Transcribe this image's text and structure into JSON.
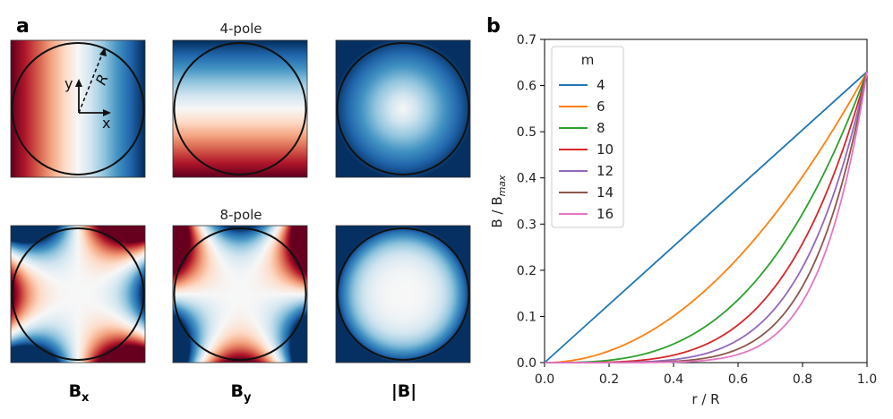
{
  "panel_a": {
    "letter": "a",
    "rows": [
      {
        "title": "4-pole",
        "m": 4
      },
      {
        "title": "8-pole",
        "m": 8
      }
    ],
    "columns": [
      {
        "label_main": "B",
        "label_sub": "x"
      },
      {
        "label_main": "B",
        "label_sub": "y"
      },
      {
        "label_main": "|B|",
        "label_sub": ""
      }
    ],
    "inset": {
      "x_label": "x",
      "y_label": "y",
      "r_label": "R"
    },
    "colormap": "RdBu",
    "colors": {
      "red": "#67001f",
      "white": "#f7f7f7",
      "blue": "#053061"
    }
  },
  "panel_b": {
    "letter": "b",
    "legend_title": "m"
  },
  "chart_data": {
    "type": "line",
    "xlabel": "r / R",
    "ylabel_main": "B / B",
    "ylabel_sub": "max",
    "xlim": [
      0.0,
      1.0
    ],
    "ylim": [
      0.0,
      0.7
    ],
    "xticks": [
      "0.0",
      "0.2",
      "0.4",
      "0.6",
      "0.8",
      "1.0"
    ],
    "yticks": [
      "0.0",
      "0.1",
      "0.2",
      "0.3",
      "0.4",
      "0.5",
      "0.6",
      "0.7"
    ],
    "grid": false,
    "legend_position": "upper-left",
    "end_value": 0.63,
    "series": [
      {
        "name": "4",
        "exponent": 1,
        "color": "#1f77b4"
      },
      {
        "name": "6",
        "exponent": 2,
        "color": "#ff7f0e"
      },
      {
        "name": "8",
        "exponent": 3,
        "color": "#2ca02c"
      },
      {
        "name": "10",
        "exponent": 4,
        "color": "#d62728"
      },
      {
        "name": "12",
        "exponent": 5,
        "color": "#9467bd"
      },
      {
        "name": "14",
        "exponent": 6,
        "color": "#8c564b"
      },
      {
        "name": "16",
        "exponent": 7,
        "color": "#e377c2"
      }
    ]
  }
}
